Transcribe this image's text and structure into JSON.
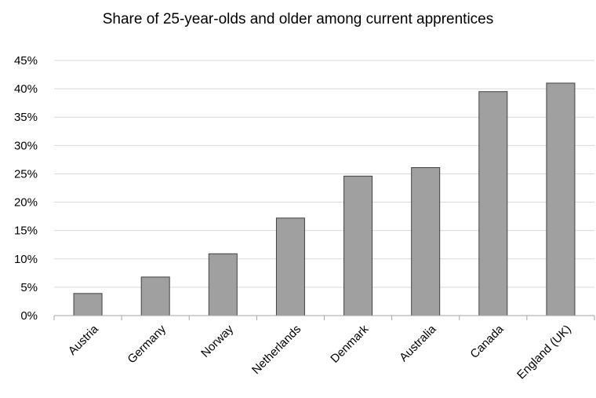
{
  "chart_data": {
    "type": "bar",
    "title": "Share of 25-year-olds and older among current apprentices",
    "xlabel": "",
    "ylabel": "",
    "categories": [
      "Austria",
      "Germany",
      "Norway",
      "Netherlands",
      "Denmark",
      "Australia",
      "Canada",
      "England (UK)"
    ],
    "values": [
      3.9,
      6.8,
      10.9,
      17.2,
      24.6,
      26.1,
      39.5,
      41.0
    ],
    "ylim": [
      0,
      45
    ],
    "yticks": [
      "0%",
      "5%",
      "10%",
      "15%",
      "20%",
      "25%",
      "30%",
      "35%",
      "40%",
      "45%"
    ],
    "ytick_values": [
      0,
      5,
      10,
      15,
      20,
      25,
      30,
      35,
      40,
      45
    ],
    "grid": true,
    "legend": "none",
    "bar_color": "#a0a0a0",
    "bar_edge_color": "#404040",
    "grid_color": "#d9d9d9"
  }
}
